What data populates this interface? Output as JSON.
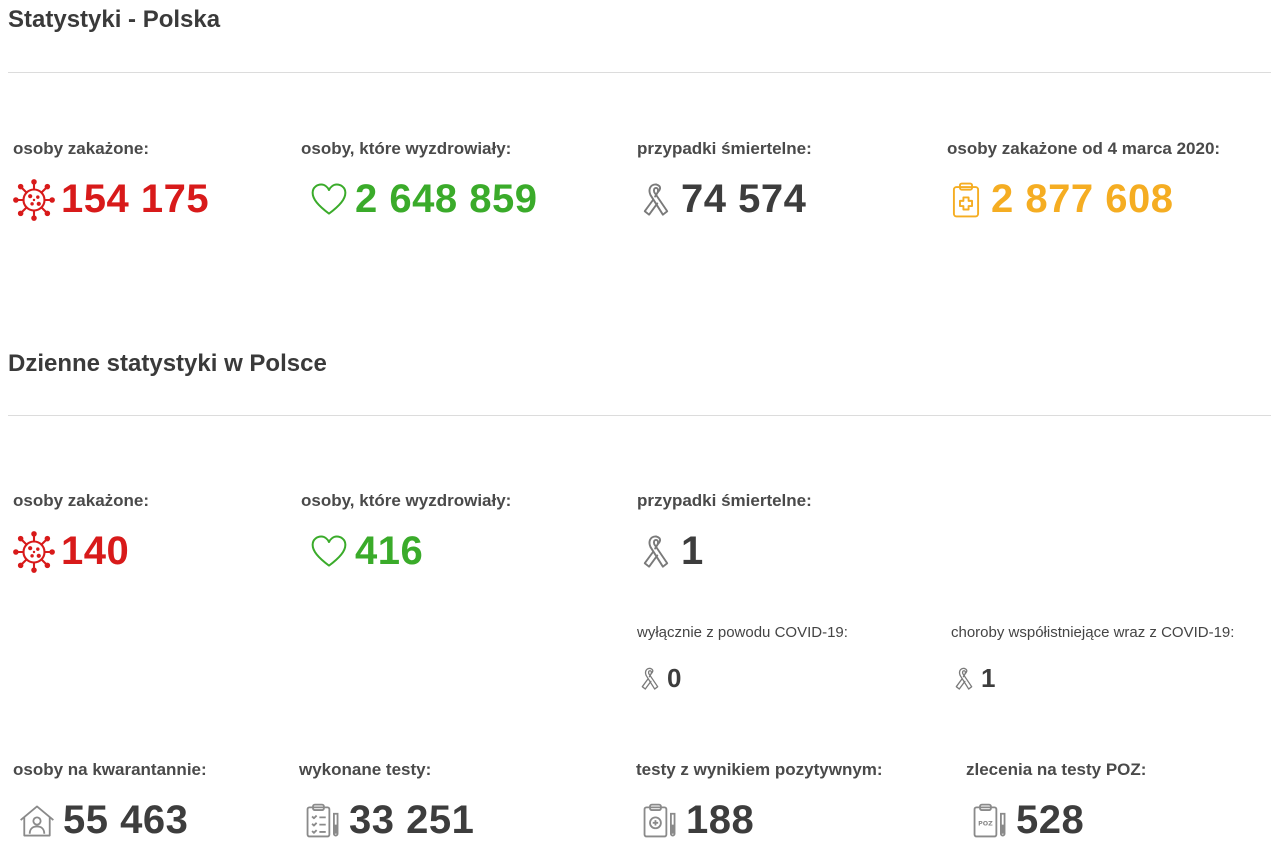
{
  "sections": [
    {
      "title": "Statystyki - Polska"
    },
    {
      "title": "Dzienne statystyki w Polsce"
    }
  ],
  "totals": {
    "infected": {
      "label": "osoby zakażone:",
      "value": "154 175",
      "icon": "virus-icon",
      "color": "#d81a1a"
    },
    "recovered": {
      "label": "osoby, które wyzdrowiały:",
      "value": "2 648 859",
      "icon": "heart-icon",
      "color": "#3aab2a"
    },
    "deaths": {
      "label": "przypadki śmiertelne:",
      "value": "74 574",
      "icon": "ribbon-icon",
      "color": "#3d3d3d"
    },
    "since_march": {
      "label": "osoby zakażone od 4 marca 2020:",
      "value": "2 877 608",
      "icon": "clipboard-cross-icon",
      "color": "#f5ad22"
    }
  },
  "daily": {
    "infected": {
      "label": "osoby zakażone:",
      "value": "140"
    },
    "recovered": {
      "label": "osoby, które wyzdrowiały:",
      "value": "416"
    },
    "deaths": {
      "label": "przypadki śmiertelne:",
      "value": "1"
    },
    "deaths_covid_only": {
      "label": "wyłącznie z powodu COVID-19:",
      "value": "0"
    },
    "deaths_comorbid": {
      "label": "choroby współistniejące wraz z COVID-19:",
      "value": "1"
    },
    "quarantine": {
      "label": "osoby na kwarantannie:",
      "value": "55 463",
      "icon": "house-person-icon"
    },
    "tests": {
      "label": "wykonane testy:",
      "value": "33 251",
      "icon": "clipboard-tube-icon"
    },
    "positive_tests": {
      "label": "testy z wynikiem pozytywnym:",
      "value": "188",
      "icon": "clipboard-plus-tube-icon"
    },
    "poz_orders": {
      "label": "zlecenia na testy POZ:",
      "value": "528",
      "icon": "clipboard-poz-icon"
    }
  }
}
